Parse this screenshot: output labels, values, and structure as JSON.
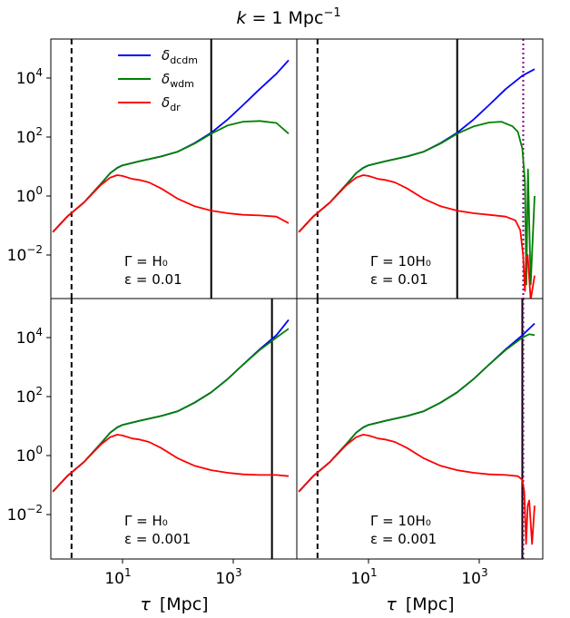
{
  "figure": {
    "title_k": "k",
    "title_eq": " = 1 Mpc",
    "title_exp": "−1",
    "xlabel_tau": "τ",
    "xlabel_unit": "[Mpc]",
    "y_tick_labels": [
      {
        "base": "10",
        "exp": "4"
      },
      {
        "base": "10",
        "exp": "2"
      },
      {
        "base": "10",
        "exp": "0"
      },
      {
        "base": "10",
        "exp": "−2"
      }
    ],
    "x_tick_labels": [
      {
        "base": "10",
        "exp": "1"
      },
      {
        "base": "10",
        "exp": "3"
      }
    ],
    "legend": [
      {
        "sym": "δ",
        "sub": "dcdm",
        "color": "#0000ff"
      },
      {
        "sym": "δ",
        "sub": "wdm",
        "color": "#008000"
      },
      {
        "sym": "δ",
        "sub": "dr",
        "color": "#ff0000"
      }
    ]
  },
  "chart_data": {
    "type": "line",
    "title": "k = 1 Mpc^-1",
    "xlabel": "τ [Mpc]",
    "ylabel": "",
    "xscale": "log",
    "yscale": "log",
    "xlim": [
      0.5,
      10000
    ],
    "ylim": [
      0.0002,
      150000
    ],
    "grid": false,
    "legend_position": "top-left (upper-left panel)",
    "colors": {
      "dcdm": "#0000ff",
      "wdm": "#008000",
      "dr": "#ff0000"
    },
    "panels": [
      {
        "id": "tl",
        "label_gamma": "Γ = H₀",
        "label_eps": "ε = 0.01",
        "dashed_vline_x": 1.2,
        "solid_vline_x": 400,
        "dotted_vline_x": null,
        "series": [
          {
            "name": "δ_dcdm",
            "x": [
              0.55,
              1,
              2,
              4,
              6,
              8,
              10,
              20,
              50,
              100,
              200,
              400,
              800,
              1500,
              3000,
              6000,
              10000
            ],
            "y": [
              0.06,
              0.2,
              0.6,
              2.5,
              6,
              9,
              11,
              15,
              22,
              32,
              62,
              140,
              400,
              1200,
              4200,
              14000,
              40000
            ]
          },
          {
            "name": "δ_wdm",
            "x": [
              0.55,
              1,
              2,
              4,
              6,
              8,
              10,
              20,
              50,
              100,
              200,
              400,
              800,
              1500,
              3000,
              6000,
              10000
            ],
            "y": [
              0.06,
              0.2,
              0.6,
              2.5,
              6,
              9,
              11,
              15,
              22,
              32,
              60,
              130,
              250,
              330,
              350,
              300,
              130
            ]
          },
          {
            "name": "δ_dr",
            "x": [
              0.55,
              1,
              2,
              4,
              6,
              8,
              10,
              15,
              20,
              30,
              50,
              100,
              200,
              400,
              800,
              1500,
              3000,
              6000,
              10000
            ],
            "y": [
              0.06,
              0.2,
              0.6,
              2.3,
              4.2,
              5.1,
              4.8,
              3.8,
              3.5,
              2.9,
              1.8,
              0.8,
              0.45,
              0.32,
              0.26,
              0.23,
              0.22,
              0.2,
              0.12
            ]
          }
        ]
      },
      {
        "id": "tr",
        "label_gamma": "Γ = 10H₀",
        "label_eps": "ε = 0.01",
        "dashed_vline_x": 1.2,
        "solid_vline_x": 400,
        "dotted_vline_x": 6000,
        "series": [
          {
            "name": "δ_dcdm",
            "x": [
              0.55,
              1,
              2,
              4,
              6,
              8,
              10,
              20,
              50,
              100,
              200,
              400,
              800,
              1500,
              3000,
              6000,
              10000
            ],
            "y": [
              0.06,
              0.2,
              0.6,
              2.5,
              6,
              9,
              11,
              15,
              22,
              32,
              62,
              140,
              400,
              1200,
              4200,
              12000,
              20000
            ]
          },
          {
            "name": "δ_wdm",
            "x": [
              0.55,
              1,
              2,
              4,
              6,
              8,
              10,
              20,
              50,
              100,
              200,
              400,
              800,
              1500,
              2500,
              4000,
              5000,
              6000,
              6700,
              7100,
              7600,
              8500,
              10000
            ],
            "y": [
              0.06,
              0.2,
              0.6,
              2.5,
              6,
              9,
              11,
              15,
              22,
              32,
              60,
              130,
              230,
              310,
              330,
              230,
              150,
              40,
              3,
              0.001,
              8,
              0.001,
              1
            ]
          },
          {
            "name": "δ_dr",
            "x": [
              0.55,
              1,
              2,
              4,
              6,
              8,
              10,
              15,
              20,
              30,
              50,
              100,
              200,
              400,
              800,
              1500,
              3000,
              4500,
              5500,
              6200,
              6700,
              7000,
              7500,
              8500,
              10000
            ],
            "y": [
              0.06,
              0.2,
              0.6,
              2.3,
              4.2,
              5.1,
              4.8,
              3.8,
              3.5,
              2.9,
              1.8,
              0.8,
              0.45,
              0.32,
              0.26,
              0.23,
              0.2,
              0.15,
              0.07,
              0.01,
              0.0006,
              0.008,
              0.01,
              0.0003,
              0.002
            ]
          }
        ]
      },
      {
        "id": "bl",
        "label_gamma": "Γ = H₀",
        "label_eps": "ε = 0.001",
        "dashed_vline_x": 1.2,
        "solid_vline_x": 5000,
        "dotted_vline_x": null,
        "series": [
          {
            "name": "δ_dcdm",
            "x": [
              0.55,
              1,
              2,
              4,
              6,
              8,
              10,
              20,
              50,
              100,
              200,
              400,
              800,
              1500,
              3000,
              6000,
              10000
            ],
            "y": [
              0.06,
              0.2,
              0.6,
              2.5,
              6,
              9,
              11,
              15,
              22,
              32,
              62,
              140,
              400,
              1200,
              4000,
              12000,
              40000
            ]
          },
          {
            "name": "δ_wdm",
            "x": [
              0.55,
              1,
              2,
              4,
              6,
              8,
              10,
              20,
              50,
              100,
              200,
              400,
              800,
              1500,
              3000,
              6000,
              10000
            ],
            "y": [
              0.06,
              0.2,
              0.6,
              2.5,
              6,
              9,
              11,
              15,
              22,
              32,
              62,
              140,
              400,
              1200,
              3800,
              10000,
              20000
            ]
          },
          {
            "name": "δ_dr",
            "x": [
              0.55,
              1,
              2,
              4,
              6,
              8,
              10,
              15,
              20,
              30,
              50,
              100,
              200,
              400,
              800,
              1500,
              3000,
              6000,
              10000
            ],
            "y": [
              0.06,
              0.2,
              0.6,
              2.3,
              4.2,
              5.1,
              4.8,
              3.8,
              3.5,
              2.9,
              1.8,
              0.8,
              0.45,
              0.32,
              0.26,
              0.23,
              0.22,
              0.22,
              0.2
            ]
          }
        ]
      },
      {
        "id": "br",
        "label_gamma": "Γ = 10H₀",
        "label_eps": "ε = 0.001",
        "dashed_vline_x": 1.2,
        "solid_vline_x": 6000,
        "dotted_vline_x": 6000,
        "series": [
          {
            "name": "δ_dcdm",
            "x": [
              0.55,
              1,
              2,
              4,
              6,
              8,
              10,
              20,
              50,
              100,
              200,
              400,
              800,
              1500,
              3000,
              6000,
              10000
            ],
            "y": [
              0.06,
              0.2,
              0.6,
              2.5,
              6,
              9,
              11,
              15,
              22,
              32,
              62,
              140,
              400,
              1200,
              4000,
              12000,
              30000
            ]
          },
          {
            "name": "δ_wdm",
            "x": [
              0.55,
              1,
              2,
              4,
              6,
              8,
              10,
              20,
              50,
              100,
              200,
              400,
              800,
              1500,
              3000,
              6000,
              8000,
              10000
            ],
            "y": [
              0.06,
              0.2,
              0.6,
              2.5,
              6,
              9,
              11,
              15,
              22,
              32,
              62,
              140,
              400,
              1200,
              3800,
              10000,
              13000,
              12000
            ]
          },
          {
            "name": "δ_dr",
            "x": [
              0.55,
              1,
              2,
              4,
              6,
              8,
              10,
              15,
              20,
              30,
              50,
              100,
              200,
              400,
              800,
              1500,
              3000,
              5000,
              6000,
              6500,
              7000,
              7500,
              8000,
              9000,
              10000
            ],
            "y": [
              0.06,
              0.2,
              0.6,
              2.3,
              4.2,
              5.1,
              4.8,
              3.8,
              3.5,
              2.9,
              1.8,
              0.8,
              0.45,
              0.32,
              0.26,
              0.23,
              0.22,
              0.2,
              0.15,
              0.06,
              0.001,
              0.02,
              0.03,
              0.001,
              0.02
            ]
          }
        ]
      }
    ]
  }
}
